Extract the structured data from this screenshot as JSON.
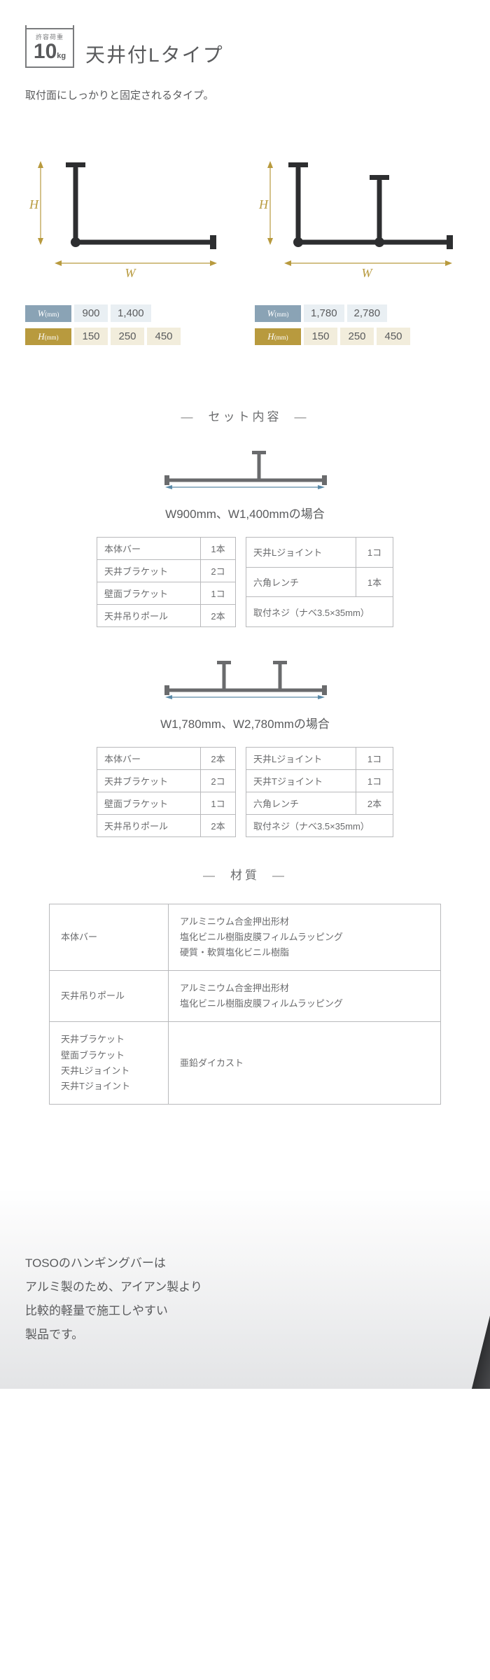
{
  "header": {
    "badge_label": "許容荷重",
    "badge_value": "10",
    "badge_unit": "kg",
    "title": "天井付Lタイプ"
  },
  "lead": "取付面にしっかりと固定されるタイプ。",
  "diagrams": {
    "dim_w": "W",
    "dim_h": "H"
  },
  "size_tables": {
    "left": {
      "w_label": "W",
      "h_label": "H",
      "unit": "(mm)",
      "w_values": [
        "900",
        "1,400"
      ],
      "h_values": [
        "150",
        "250",
        "450"
      ]
    },
    "right": {
      "w_label": "W",
      "h_label": "H",
      "unit": "(mm)",
      "w_values": [
        "1,780",
        "2,780"
      ],
      "h_values": [
        "150",
        "250",
        "450"
      ]
    }
  },
  "set_contents": {
    "header": "セット内容",
    "sets": [
      {
        "caption": "W900mm、W1,400mmの場合",
        "left_rows": [
          [
            "本体バー",
            "1本"
          ],
          [
            "天井ブラケット",
            "2コ"
          ],
          [
            "壁面ブラケット",
            "1コ"
          ],
          [
            "天井吊りポール",
            "2本"
          ]
        ],
        "right_rows": [
          [
            "天井Lジョイント",
            "1コ"
          ],
          [
            "六角レンチ",
            "1本"
          ],
          [
            "取付ネジ（ナベ3.5×35mm）",
            ""
          ]
        ]
      },
      {
        "caption": "W1,780mm、W2,780mmの場合",
        "left_rows": [
          [
            "本体バー",
            "2本"
          ],
          [
            "天井ブラケット",
            "2コ"
          ],
          [
            "壁面ブラケット",
            "1コ"
          ],
          [
            "天井吊りポール",
            "2本"
          ]
        ],
        "right_rows": [
          [
            "天井Lジョイント",
            "1コ"
          ],
          [
            "天井Tジョイント",
            "1コ"
          ],
          [
            "六角レンチ",
            "2本"
          ],
          [
            "取付ネジ（ナベ3.5×35mm）",
            ""
          ]
        ]
      }
    ]
  },
  "material": {
    "header": "材質",
    "rows": [
      {
        "label": "本体バー",
        "value": "アルミニウム合金押出形材\n塩化ビニル樹脂皮膜フィルムラッピング\n硬質・軟質塩化ビニル樹脂"
      },
      {
        "label": "天井吊りポール",
        "value": "アルミニウム合金押出形材\n塩化ビニル樹脂皮膜フィルムラッピング"
      },
      {
        "label": "天井ブラケット\n壁面ブラケット\n天井Lジョイント\n天井Tジョイント",
        "value": "亜鉛ダイカスト"
      }
    ]
  },
  "footer": {
    "text": "TOSOのハンギングバーは\nアルミ製のため、アイアン製より\n比較的軽量で施工しやすい\n製品です。"
  },
  "colors": {
    "text": "#595a5c",
    "muted": "#6a6b6d",
    "gold": "#b89a3e",
    "blue": "#8aa3b5",
    "cell_blue": "#e9eff3",
    "cell_tan": "#f2eddc",
    "border": "#b8b9bb",
    "bar_dark": "#2d2e30"
  }
}
